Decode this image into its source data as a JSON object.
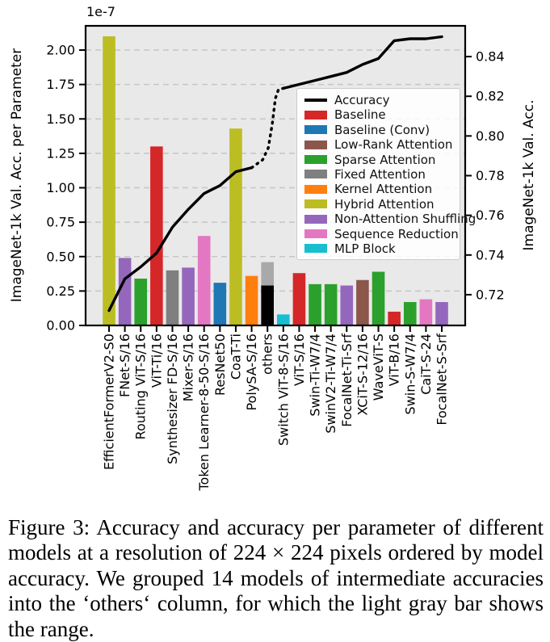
{
  "figure": {
    "caption_lines": [
      "Figure 3: Accuracy and accuracy per parameter of different",
      "models at a resolution of 224 × 224 pixels ordered by model",
      "accuracy. We grouped 14 models of intermediate accuracies",
      "into the ‘others‘ column, for which the light gray bar shows",
      "the range."
    ]
  },
  "chart_data": {
    "type": "bar+line",
    "title": "",
    "background": "#e9e9e9",
    "grid": "dashed horizontal",
    "left_axis": {
      "title": "ImageNet-1k Val. Acc. per Parameter",
      "offset_label": "1e-7",
      "ticks": [
        "0.00",
        "0.25",
        "0.50",
        "0.75",
        "1.00",
        "1.25",
        "1.50",
        "1.75",
        "2.00"
      ],
      "range": [
        0,
        2.176
      ]
    },
    "right_axis": {
      "title": "ImageNet-1k Val. Acc.",
      "ticks": [
        "0.72",
        "0.74",
        "0.76",
        "0.78",
        "0.80",
        "0.82",
        "0.84"
      ],
      "range": [
        0.7045,
        0.8555
      ]
    },
    "categories": [
      "EfficientFormerV2-S0",
      "FNet-S/16",
      "Routing ViT-S/16",
      "ViT-Ti/16",
      "Synthesizer FD-S/16",
      "Mixer-S/16",
      "Token Learner-8-50-S/16",
      "ResNet50",
      "CoaT-Ti",
      "PolySA-S/16",
      "others",
      "Switch ViT-8-S/16",
      "ViT-S/16",
      "Swin-Ti-W7/4",
      "SwinV2-Ti-W7/4",
      "FocalNet-Ti-Srf",
      "XCiT-S-12/16",
      "WaveViT-S",
      "ViT-B/16",
      "Swin-S-W7/4",
      "CaiT-S-24",
      "FocalNet-S-Srf"
    ],
    "bars": [
      {
        "model": "EfficientFormerV2-S0",
        "group": "Hybrid Attention",
        "value": 2.1
      },
      {
        "model": "FNet-S/16",
        "group": "Non-Attention Shuffling",
        "value": 0.49
      },
      {
        "model": "Routing ViT-S/16",
        "group": "Sparse Attention",
        "value": 0.34
      },
      {
        "model": "ViT-Ti/16",
        "group": "Baseline",
        "value": 1.3
      },
      {
        "model": "Synthesizer FD-S/16",
        "group": "Fixed Attention",
        "value": 0.4
      },
      {
        "model": "Mixer-S/16",
        "group": "Non-Attention Shuffling",
        "value": 0.42
      },
      {
        "model": "Token Learner-8-50-S/16",
        "group": "Sequence Reduction",
        "value": 0.65
      },
      {
        "model": "ResNet50",
        "group": "Baseline (Conv)",
        "value": 0.31
      },
      {
        "model": "CoaT-Ti",
        "group": "Hybrid Attention",
        "value": 1.43
      },
      {
        "model": "PolySA-S/16",
        "group": "Kernel Attention",
        "value": 0.36
      },
      {
        "model": "others",
        "group": "others",
        "value": 0.29,
        "range_value": 0.46
      },
      {
        "model": "Switch ViT-8-S/16",
        "group": "MLP Block",
        "value": 0.08
      },
      {
        "model": "ViT-S/16",
        "group": "Baseline",
        "value": 0.38
      },
      {
        "model": "Swin-Ti-W7/4",
        "group": "Sparse Attention",
        "value": 0.3
      },
      {
        "model": "SwinV2-Ti-W7/4",
        "group": "Sparse Attention",
        "value": 0.3
      },
      {
        "model": "FocalNet-Ti-Srf",
        "group": "Non-Attention Shuffling",
        "value": 0.29
      },
      {
        "model": "XCiT-S-12/16",
        "group": "Low-Rank Attention",
        "value": 0.33
      },
      {
        "model": "WaveViT-S",
        "group": "Sparse Attention",
        "value": 0.39
      },
      {
        "model": "ViT-B/16",
        "group": "Baseline",
        "value": 0.1
      },
      {
        "model": "Swin-S-W7/4",
        "group": "Sparse Attention",
        "value": 0.17
      },
      {
        "model": "CaiT-S-24",
        "group": "Sequence Reduction",
        "value": 0.19
      },
      {
        "model": "FocalNet-S-Srf",
        "group": "Non-Attention Shuffling",
        "value": 0.17
      }
    ],
    "accuracy_line": {
      "name": "Accuracy",
      "values": [
        0.712,
        0.728,
        0.734,
        0.741,
        0.754,
        0.763,
        0.771,
        0.775,
        0.782,
        0.784,
        0.801,
        0.824,
        0.826,
        0.828,
        0.83,
        0.832,
        0.836,
        0.839,
        0.848,
        0.849,
        0.849,
        0.85
      ],
      "dotted_span_note": "dotted between PolySA-S/16 and Switch ViT-8-S/16 across the others column",
      "dotted_points": [
        [
          9,
          0.784
        ],
        [
          9.7,
          0.788
        ],
        [
          10.05,
          0.794
        ],
        [
          10.3,
          0.806
        ],
        [
          10.5,
          0.819
        ],
        [
          10.7,
          0.8235
        ],
        [
          11,
          0.824
        ]
      ]
    },
    "group_colors": {
      "Baseline": "#d62728",
      "Baseline (Conv)": "#1f77b4",
      "Low-Rank Attention": "#8c564b",
      "Sparse Attention": "#2ca02c",
      "Fixed Attention": "#7f7f7f",
      "Kernel Attention": "#ff7f0e",
      "Hybrid Attention": "#bcbd22",
      "Non-Attention Shuffling": "#9467bd",
      "Sequence Reduction": "#e377c2",
      "MLP Block": "#17becf",
      "others": "#000000",
      "others_range": "#a9a9a9"
    },
    "legend": [
      {
        "label": "Accuracy",
        "color": "#000000",
        "type": "line"
      },
      {
        "label": "Baseline",
        "color": "#d62728",
        "type": "patch"
      },
      {
        "label": "Baseline (Conv)",
        "color": "#1f77b4",
        "type": "patch"
      },
      {
        "label": "Low-Rank Attention",
        "color": "#8c564b",
        "type": "patch"
      },
      {
        "label": "Sparse Attention",
        "color": "#2ca02c",
        "type": "patch"
      },
      {
        "label": "Fixed Attention",
        "color": "#7f7f7f",
        "type": "patch"
      },
      {
        "label": "Kernel Attention",
        "color": "#ff7f0e",
        "type": "patch"
      },
      {
        "label": "Hybrid Attention",
        "color": "#bcbd22",
        "type": "patch"
      },
      {
        "label": "Non-Attention Shuffling",
        "color": "#9467bd",
        "type": "patch"
      },
      {
        "label": "Sequence Reduction",
        "color": "#e377c2",
        "type": "patch"
      },
      {
        "label": "MLP Block",
        "color": "#17becf",
        "type": "patch"
      }
    ],
    "legend_position": "upper right inside plot"
  }
}
